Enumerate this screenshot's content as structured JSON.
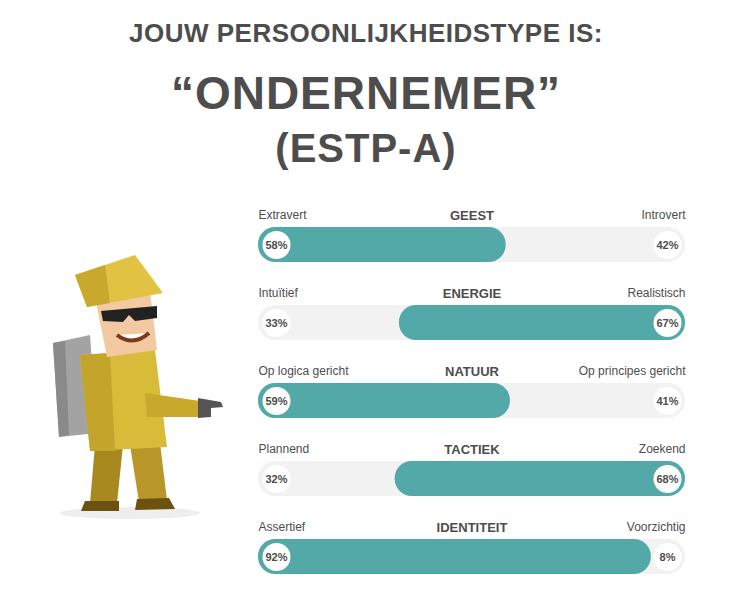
{
  "chart_data": {
    "type": "bar",
    "title": "JOUW PERSOONLIJKHEIDSTYPE IS:",
    "subtitle": [
      "“ONDERNEMER”",
      "(ESTP-A)"
    ],
    "orientation": "horizontal",
    "stacked": true,
    "data_labels": true,
    "tick_labels": false,
    "color": "#52a9a8",
    "xlim": [
      0,
      100
    ],
    "categories": [
      "GEEST",
      "ENERGIE",
      "NATUUR",
      "TACTIEK",
      "IDENTITEIT"
    ],
    "left_labels": [
      "Extravert",
      "Intuïtief",
      "Op logica gericht",
      "Plannend",
      "Assertief"
    ],
    "right_labels": [
      "Introvert",
      "Realistisch",
      "Op principes gericht",
      "Zoekend",
      "Voorzichtig"
    ],
    "values": [
      58,
      33,
      59,
      32,
      92
    ],
    "value_labels": [
      "58%",
      "33%",
      "59%",
      "32%",
      "92%"
    ],
    "right_values": [
      42,
      67,
      41,
      68,
      8
    ],
    "right_value_labels": [
      "42%",
      "67%",
      "41%",
      "68%",
      "8%"
    ]
  }
}
